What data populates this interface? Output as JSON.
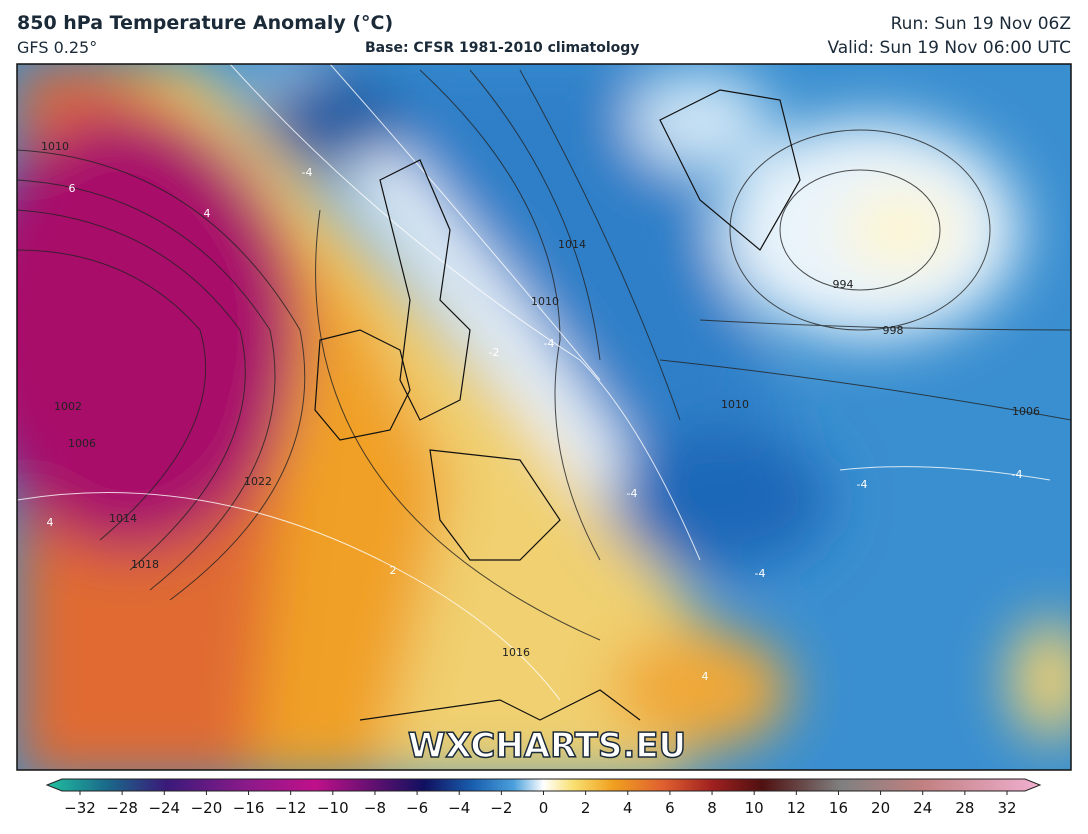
{
  "header": {
    "title": "850 hPa Temperature Anomaly (°C)",
    "model": "GFS 0.25°",
    "base": "Base: CFSR 1981-2010 climatology",
    "run": "Run: Sun 19 Nov 06Z",
    "valid": "Valid: Sun 19 Nov 06:00 UTC"
  },
  "map": {
    "watermark": "WXCHARTS.EU",
    "labels": [
      "1010",
      "6",
      "4",
      "-4",
      "1014",
      "1010",
      "-4",
      "-2",
      "994",
      "998",
      "1010",
      "1006",
      "-4",
      "-4",
      "1022",
      "1018",
      "1014",
      "1006",
      "1002",
      "4",
      "2",
      "1016",
      "-4",
      "4",
      "-4"
    ]
  },
  "colorbar": {
    "ticks": [
      "−32",
      "−28",
      "−24",
      "−20",
      "−16",
      "−12",
      "−10",
      "−8",
      "−6",
      "−4",
      "−2",
      "0",
      "2",
      "4",
      "6",
      "8",
      "10",
      "12",
      "16",
      "20",
      "24",
      "28",
      "32"
    ]
  }
}
